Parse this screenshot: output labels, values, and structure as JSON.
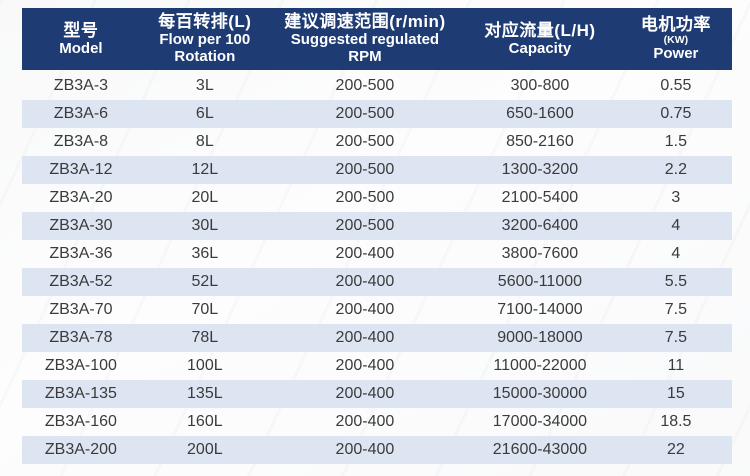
{
  "colors": {
    "header_bg": "#1e3b74",
    "header_text": "#ffffff",
    "stripe_bg": "#dde4f2",
    "body_text": "#3b3b3b"
  },
  "table": {
    "columns": [
      {
        "zh": "型号",
        "en1": "Model"
      },
      {
        "zh": "每百转排(L)",
        "en1": "Flow per 100",
        "en2": "Rotation"
      },
      {
        "zh": "建议调速范围(r/min)",
        "en1": "Suggested regulated",
        "en2": "RPM"
      },
      {
        "zh": "对应流量(L/H)",
        "en1": "Capacity"
      },
      {
        "zh": "电机功率",
        "sub": "(KW)",
        "en1": "Power"
      }
    ],
    "rows": [
      [
        "ZB3A-3",
        "3L",
        "200-500",
        "300-800",
        "0.55"
      ],
      [
        "ZB3A-6",
        "6L",
        "200-500",
        "650-1600",
        "0.75"
      ],
      [
        "ZB3A-8",
        "8L",
        "200-500",
        "850-2160",
        "1.5"
      ],
      [
        "ZB3A-12",
        "12L",
        "200-500",
        "1300-3200",
        "2.2"
      ],
      [
        "ZB3A-20",
        "20L",
        "200-500",
        "2100-5400",
        "3"
      ],
      [
        "ZB3A-30",
        "30L",
        "200-500",
        "3200-6400",
        "4"
      ],
      [
        "ZB3A-36",
        "36L",
        "200-400",
        "3800-7600",
        "4"
      ],
      [
        "ZB3A-52",
        "52L",
        "200-400",
        "5600-11000",
        "5.5"
      ],
      [
        "ZB3A-70",
        "70L",
        "200-400",
        "7100-14000",
        "7.5"
      ],
      [
        "ZB3A-78",
        "78L",
        "200-400",
        "9000-18000",
        "7.5"
      ],
      [
        "ZB3A-100",
        "100L",
        "200-400",
        "11000-22000",
        "11"
      ],
      [
        "ZB3A-135",
        "135L",
        "200-400",
        "15000-30000",
        "15"
      ],
      [
        "ZB3A-160",
        "160L",
        "200-400",
        "17000-34000",
        "18.5"
      ],
      [
        "ZB3A-200",
        "200L",
        "200-400",
        "21600-43000",
        "22"
      ]
    ]
  }
}
